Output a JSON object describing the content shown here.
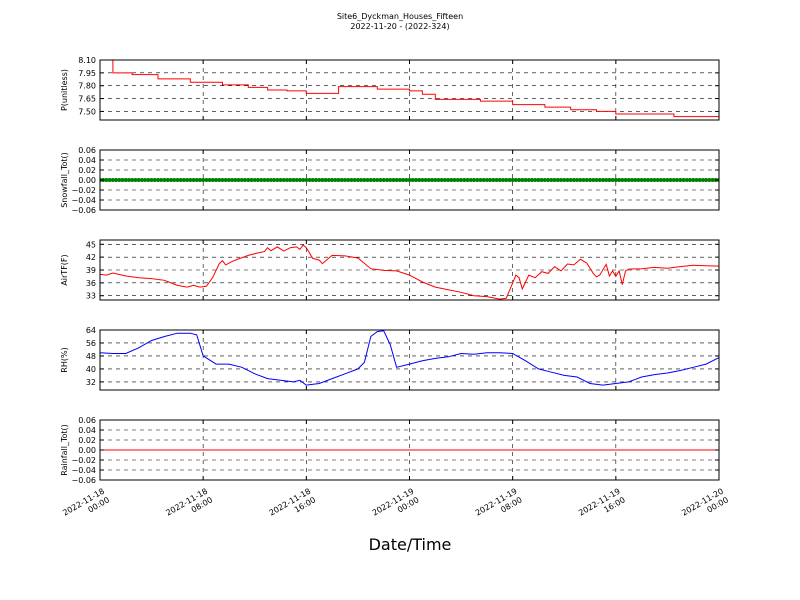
{
  "title_line1": "Site6_Dyckman_Houses_Fifteen",
  "title_line2": "2022-11-20 - (2022-324)",
  "xlabel": "Date/Time",
  "chart_data": [
    {
      "type": "line",
      "ylabel": "P(unitless)",
      "color": "#ff0000",
      "ylim": [
        7.4,
        8.1
      ],
      "yticks": [
        7.5,
        7.65,
        7.8,
        7.95,
        8.1
      ],
      "ytick_labels": [
        "7.50",
        "7.65",
        "7.80",
        "7.95",
        "8.10"
      ],
      "xlim": [
        "2022-11-18 00:00",
        "2022-11-20 00:00"
      ],
      "step": true,
      "x": [
        "2022-11-18 00:00",
        "2022-11-18 01:00",
        "2022-11-18 01:20",
        "2022-11-18 02:30",
        "2022-11-18 04:30",
        "2022-11-18 07:00",
        "2022-11-18 09:30",
        "2022-11-18 11:30",
        "2022-11-18 13:00",
        "2022-11-18 14:30",
        "2022-11-18 16:00",
        "2022-11-18 18:30",
        "2022-11-18 21:30",
        "2022-11-19 00:00",
        "2022-11-19 01:00",
        "2022-11-19 02:00",
        "2022-11-19 05:30",
        "2022-11-19 08:00",
        "2022-11-19 10:30",
        "2022-11-19 12:30",
        "2022-11-19 14:30",
        "2022-11-19 16:00",
        "2022-11-19 20:30",
        "2022-11-20 00:00"
      ],
      "y": [
        8.1,
        7.95,
        7.95,
        7.93,
        7.88,
        7.84,
        7.81,
        7.78,
        7.75,
        7.74,
        7.71,
        7.79,
        7.76,
        7.74,
        7.7,
        7.64,
        7.62,
        7.58,
        7.55,
        7.52,
        7.5,
        7.47,
        7.44,
        7.44
      ]
    },
    {
      "type": "scatter",
      "ylabel": "Snowfall_Tot()",
      "color": "#008000",
      "ylim": [
        -0.06,
        0.06
      ],
      "yticks": [
        -0.06,
        -0.04,
        -0.02,
        0.0,
        0.02,
        0.04,
        0.06
      ],
      "ytick_labels": [
        "−0.06",
        "−0.04",
        "−0.02",
        "0.00",
        "0.02",
        "0.04",
        "0.06"
      ],
      "xlim": [
        "2022-11-18 00:00",
        "2022-11-20 00:00"
      ],
      "constant_value": 0.0,
      "interval_minutes": 15
    },
    {
      "type": "line",
      "ylabel": "AirTF(F)",
      "color": "#ff0000",
      "ylim": [
        32,
        46
      ],
      "yticks": [
        33,
        36,
        39,
        42,
        45
      ],
      "ytick_labels": [
        "33",
        "36",
        "39",
        "42",
        "45"
      ],
      "xlim": [
        "2022-11-18 00:00",
        "2022-11-20 00:00"
      ],
      "x": [
        "2022-11-18 00:00",
        "2022-11-18 00:30",
        "2022-11-18 01:00",
        "2022-11-18 02:00",
        "2022-11-18 03:00",
        "2022-11-18 04:00",
        "2022-11-18 05:00",
        "2022-11-18 05:30",
        "2022-11-18 06:00",
        "2022-11-18 06:45",
        "2022-11-18 07:15",
        "2022-11-18 07:45",
        "2022-11-18 08:15",
        "2022-11-18 08:45",
        "2022-11-18 09:15",
        "2022-11-18 09:30",
        "2022-11-18 09:45",
        "2022-11-18 10:15",
        "2022-11-18 10:45",
        "2022-11-18 11:30",
        "2022-11-18 12:15",
        "2022-11-18 12:45",
        "2022-11-18 13:00",
        "2022-11-18 13:15",
        "2022-11-18 13:45",
        "2022-11-18 14:15",
        "2022-11-18 14:45",
        "2022-11-18 15:15",
        "2022-11-18 15:30",
        "2022-11-18 15:45",
        "2022-11-18 16:00",
        "2022-11-18 16:30",
        "2022-11-18 17:00",
        "2022-11-18 17:15",
        "2022-11-18 17:45",
        "2022-11-18 18:00",
        "2022-11-18 19:00",
        "2022-11-18 20:00",
        "2022-11-18 21:00",
        "2022-11-18 22:00",
        "2022-11-18 23:00",
        "2022-11-19 00:00",
        "2022-11-19 01:00",
        "2022-11-19 02:00",
        "2022-11-19 03:00",
        "2022-11-19 04:00",
        "2022-11-19 05:00",
        "2022-11-19 06:00",
        "2022-11-19 07:00",
        "2022-11-19 07:30",
        "2022-11-19 08:00",
        "2022-11-19 08:15",
        "2022-11-19 08:30",
        "2022-11-19 08:45",
        "2022-11-19 09:15",
        "2022-11-19 09:45",
        "2022-11-19 10:15",
        "2022-11-19 10:45",
        "2022-11-19 11:15",
        "2022-11-19 11:45",
        "2022-11-19 12:15",
        "2022-11-19 12:45",
        "2022-11-19 13:15",
        "2022-11-19 13:45",
        "2022-11-19 14:15",
        "2022-11-19 14:30",
        "2022-11-19 14:45",
        "2022-11-19 15:15",
        "2022-11-19 15:30",
        "2022-11-19 15:45",
        "2022-11-19 16:00",
        "2022-11-19 16:15",
        "2022-11-19 16:30",
        "2022-11-19 16:45",
        "2022-11-19 17:00",
        "2022-11-19 18:00",
        "2022-11-19 19:00",
        "2022-11-19 20:00",
        "2022-11-19 21:00",
        "2022-11-19 22:00",
        "2022-11-19 23:00",
        "2022-11-20 00:00"
      ],
      "y": [
        38.0,
        37.8,
        38.3,
        37.6,
        37.2,
        37.0,
        36.6,
        36.0,
        35.4,
        35.0,
        35.4,
        35.0,
        35.2,
        37.3,
        40.5,
        41.2,
        40.2,
        41.0,
        41.6,
        42.4,
        43.0,
        43.3,
        44.2,
        43.5,
        44.4,
        43.4,
        44.2,
        44.4,
        43.8,
        44.8,
        44.2,
        41.7,
        41.3,
        40.5,
        41.8,
        42.4,
        42.3,
        41.8,
        39.3,
        38.9,
        38.8,
        37.8,
        36.2,
        35.0,
        34.4,
        33.8,
        33.0,
        32.8,
        32.2,
        32.4,
        36.0,
        37.8,
        37.2,
        34.6,
        37.8,
        37.2,
        38.6,
        38.2,
        39.8,
        38.8,
        40.4,
        40.2,
        41.5,
        40.6,
        38.2,
        37.4,
        37.8,
        40.3,
        37.6,
        38.8,
        37.5,
        38.8,
        35.6,
        38.8,
        39.2,
        39.3,
        39.6,
        39.4,
        39.8,
        40.1,
        40.0,
        39.9
      ]
    },
    {
      "type": "line",
      "ylabel": "RH(%)",
      "color": "#0000ff",
      "ylim": [
        27,
        64
      ],
      "yticks": [
        32,
        40,
        48,
        56,
        64
      ],
      "ytick_labels": [
        "32",
        "40",
        "48",
        "56",
        "64"
      ],
      "xlim": [
        "2022-11-18 00:00",
        "2022-11-20 00:00"
      ],
      "x": [
        "2022-11-18 00:00",
        "2022-11-18 01:00",
        "2022-11-18 02:00",
        "2022-11-18 03:00",
        "2022-11-18 04:00",
        "2022-11-18 05:00",
        "2022-11-18 06:00",
        "2022-11-18 07:00",
        "2022-11-18 07:30",
        "2022-11-18 08:00",
        "2022-11-18 09:00",
        "2022-11-18 10:00",
        "2022-11-18 11:00",
        "2022-11-18 12:00",
        "2022-11-18 13:00",
        "2022-11-18 14:00",
        "2022-11-18 15:00",
        "2022-11-18 15:30",
        "2022-11-18 16:00",
        "2022-11-18 17:00",
        "2022-11-18 18:00",
        "2022-11-18 19:00",
        "2022-11-18 20:00",
        "2022-11-18 20:30",
        "2022-11-18 21:00",
        "2022-11-18 21:30",
        "2022-11-18 22:00",
        "2022-11-18 22:30",
        "2022-11-18 23:00",
        "2022-11-19 00:00",
        "2022-11-19 01:00",
        "2022-11-19 02:00",
        "2022-11-19 03:00",
        "2022-11-19 04:00",
        "2022-11-19 05:00",
        "2022-11-19 06:00",
        "2022-11-19 07:00",
        "2022-11-19 08:00",
        "2022-11-19 09:00",
        "2022-11-19 10:00",
        "2022-11-19 11:00",
        "2022-11-19 12:00",
        "2022-11-19 13:00",
        "2022-11-19 14:00",
        "2022-11-19 15:00",
        "2022-11-19 16:00",
        "2022-11-19 17:00",
        "2022-11-19 18:00",
        "2022-11-19 19:00",
        "2022-11-19 20:00",
        "2022-11-19 21:00",
        "2022-11-19 22:00",
        "2022-11-19 23:00",
        "2022-11-20 00:00"
      ],
      "y": [
        50,
        49.5,
        49.5,
        53,
        57.5,
        60,
        62,
        62,
        61,
        48,
        43,
        43,
        41,
        37,
        34,
        33,
        32,
        33,
        30,
        31,
        34,
        37,
        40,
        44,
        60,
        63,
        63.5,
        55,
        41,
        43,
        45,
        46.5,
        47.5,
        49.5,
        49,
        50,
        50,
        49.5,
        45,
        40,
        38,
        36,
        35,
        31,
        30,
        31,
        32,
        35,
        36.5,
        37.5,
        39,
        41,
        43,
        47
      ]
    },
    {
      "type": "line",
      "ylabel": "Rainfall_Tot()",
      "color": "#ff0000",
      "ylim": [
        -0.06,
        0.06
      ],
      "yticks": [
        -0.06,
        -0.04,
        -0.02,
        0.0,
        0.02,
        0.04,
        0.06
      ],
      "ytick_labels": [
        "−0.06",
        "−0.04",
        "−0.02",
        "0.00",
        "0.02",
        "0.04",
        "0.06"
      ],
      "xlim": [
        "2022-11-18 00:00",
        "2022-11-20 00:00"
      ],
      "x": [
        "2022-11-18 00:00",
        "2022-11-20 00:00"
      ],
      "y": [
        0.0,
        0.0
      ]
    }
  ],
  "x_ticks": [
    {
      "line1": "2022-11-18",
      "line2": "00:00"
    },
    {
      "line1": "2022-11-18",
      "line2": "08:00"
    },
    {
      "line1": "2022-11-18",
      "line2": "16:00"
    },
    {
      "line1": "2022-11-19",
      "line2": "00:00"
    },
    {
      "line1": "2022-11-19",
      "line2": "08:00"
    },
    {
      "line1": "2022-11-19",
      "line2": "16:00"
    },
    {
      "line1": "2022-11-20",
      "line2": "00:00"
    }
  ]
}
